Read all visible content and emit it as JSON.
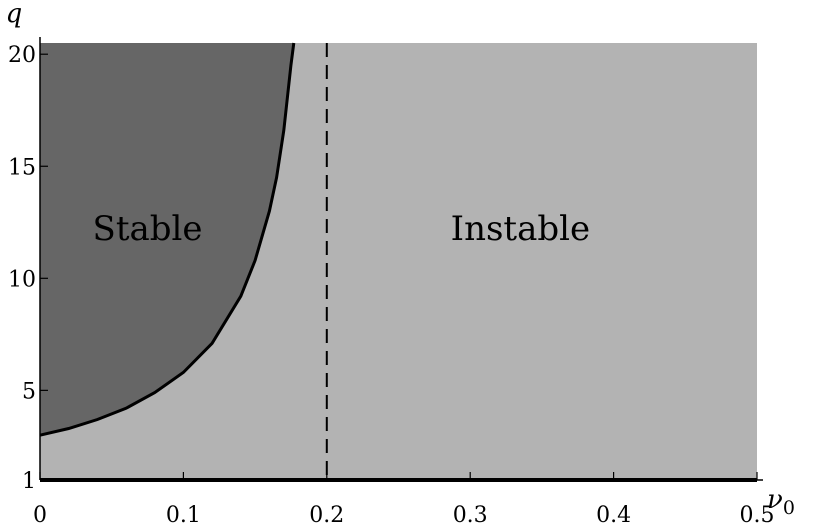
{
  "chart_data": {
    "type": "area",
    "xlabel": "ν",
    "xlabel_sub": "0",
    "ylabel": "q",
    "xlim": [
      0,
      0.5
    ],
    "ylim": [
      1,
      20.5
    ],
    "x_ticks": [
      0,
      0.1,
      0.2,
      0.3,
      0.4,
      0.5
    ],
    "x_tick_labels": [
      "0",
      "0.1",
      "0.2",
      "0.3",
      "0.4",
      "0.5"
    ],
    "y_ticks": [
      1,
      5,
      10,
      15,
      20
    ],
    "y_tick_labels": [
      "1",
      "5",
      "10",
      "15",
      "20"
    ],
    "grid": false,
    "regions": [
      {
        "label": "Stable",
        "color": "#666666"
      },
      {
        "label": "Instable",
        "color": "#b3b3b3"
      }
    ],
    "boundary_curve": {
      "x": [
        0,
        0.02,
        0.04,
        0.06,
        0.08,
        0.1,
        0.12,
        0.14,
        0.15,
        0.16,
        0.165,
        0.17,
        0.175,
        0.177
      ],
      "y": [
        3.0,
        3.3,
        3.7,
        4.2,
        4.9,
        5.8,
        7.1,
        9.2,
        10.8,
        13.0,
        14.5,
        16.6,
        19.5,
        20.5
      ]
    },
    "vertical_asymptote_x": 0.2,
    "horizontal_line_y": 1
  }
}
